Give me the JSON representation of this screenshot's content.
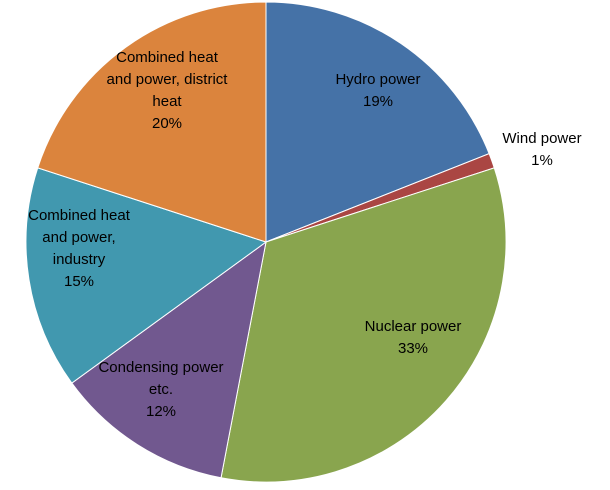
{
  "chart_data": {
    "type": "pie",
    "start_angle_deg": 0,
    "direction": "clockwise",
    "slices": [
      {
        "name": "Hydro power",
        "label_lines": [
          "Hydro power"
        ],
        "percent_label": "19%",
        "value": 19,
        "color": "#4572A7"
      },
      {
        "name": "Wind power",
        "label_lines": [
          "Wind power"
        ],
        "percent_label": "1%",
        "value": 1,
        "color": "#AA4643"
      },
      {
        "name": "Nuclear power",
        "label_lines": [
          "Nuclear power"
        ],
        "percent_label": "33%",
        "value": 33,
        "color": "#89A54E"
      },
      {
        "name": "Condensing power etc.",
        "label_lines": [
          "Condensing power",
          "etc."
        ],
        "percent_label": "12%",
        "value": 12,
        "color": "#71588F"
      },
      {
        "name": "Combined heat and power, industry",
        "label_lines": [
          "Combined heat",
          "and power,",
          "industry"
        ],
        "percent_label": "15%",
        "value": 15,
        "color": "#4198AF"
      },
      {
        "name": "Combined heat and power, district heat",
        "label_lines": [
          "Combined heat",
          "and power, district",
          "heat"
        ],
        "percent_label": "20%",
        "value": 20,
        "color": "#DB843D"
      }
    ]
  }
}
